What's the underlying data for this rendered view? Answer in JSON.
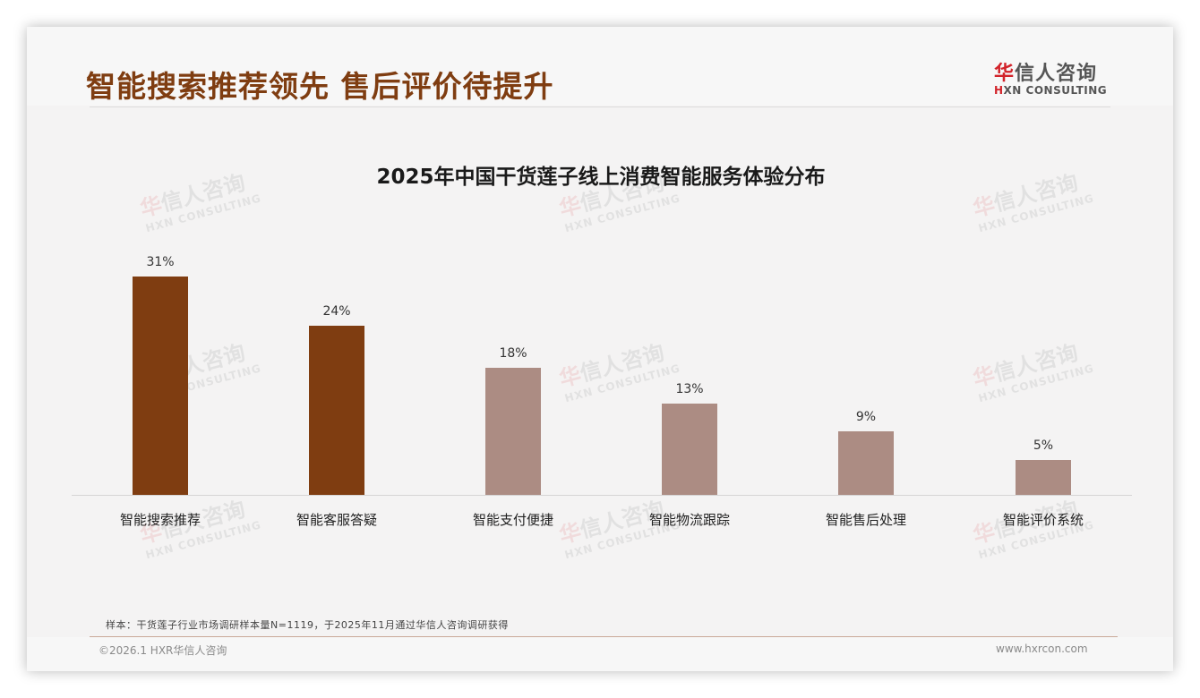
{
  "header": {
    "title": "智能搜索推荐领先 售后评价待提升",
    "logo": {
      "cn_accent": "华",
      "cn_rest": "信人咨询",
      "en_accent": "H",
      "en_rest": "XN CONSULTING"
    }
  },
  "watermark": {
    "cn_accent": "华",
    "cn_rest": "信人咨询",
    "en": "HXN CONSULTING"
  },
  "colors": {
    "title": "#7f3d11",
    "bar_highlight": "#7f3d11",
    "bar_normal": "#ac8c83",
    "logo_accent": "#d2232a",
    "background": "#f4f3f3"
  },
  "chart_data": {
    "type": "bar",
    "title": "2025年中国干货莲子线上消费智能服务体验分布",
    "categories": [
      "智能搜索推荐",
      "智能客服答疑",
      "智能支付便捷",
      "智能物流跟踪",
      "智能售后处理",
      "智能评价系统"
    ],
    "values": [
      31,
      24,
      18,
      13,
      9,
      5
    ],
    "value_labels": [
      "31%",
      "24%",
      "18%",
      "13%",
      "9%",
      "5%"
    ],
    "highlighted": [
      true,
      true,
      false,
      false,
      false,
      false
    ],
    "unit": "%",
    "xlabel": "",
    "ylabel": "",
    "ylim": [
      0,
      31
    ],
    "grid": false,
    "legend": null
  },
  "footer": {
    "note": "样本：干货莲子行业市场调研样本量N=1119，于2025年11月通过华信人咨询调研获得",
    "copyright": "©2026.1 HXR华信人咨询",
    "website": "www.hxrcon.com"
  }
}
